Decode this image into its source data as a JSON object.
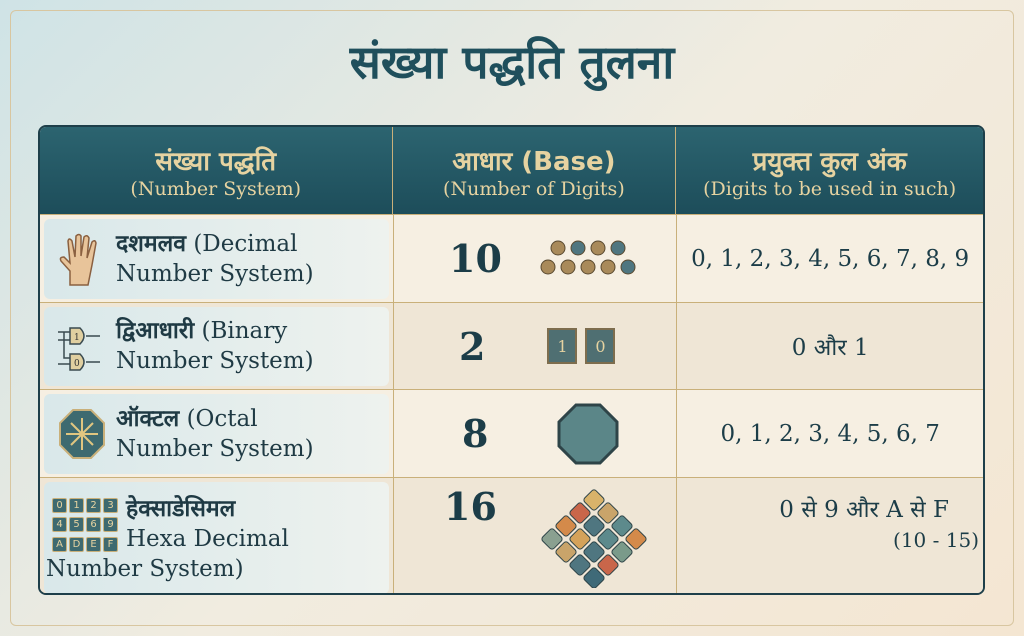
{
  "title": "संख्या पद्धति तुलना",
  "header": {
    "col1": {
      "hi": "संख्या पद्धति",
      "en": "(Number System)"
    },
    "col2": {
      "hi": "आधार (Base)",
      "en": "(Number of Digits)"
    },
    "col3": {
      "hi": "प्रयुक्त कुल अंक",
      "en": "(Digits to be used in such)"
    }
  },
  "rows": [
    {
      "hi": "दशमलव",
      "en1": "(Decimal",
      "en2": "Number System)",
      "base": "10",
      "digits": "0, 1, 2, 3, 4, 5, 6, 7, 8, 9",
      "icon": "hand-icon",
      "visual": "beads-icon"
    },
    {
      "hi": "द्विआधारी",
      "en1": "(Binary",
      "en2": "Number System)",
      "base": "2",
      "digits": "0 और 1",
      "icon": "logic-gate-icon",
      "visual": "chips-icon",
      "chip_labels": [
        "1",
        "0"
      ]
    },
    {
      "hi": "ऑक्टल",
      "en1": "(Octal",
      "en2": "Number System)",
      "base": "8",
      "digits": "0, 1, 2, 3, 4, 5, 6, 7",
      "icon": "octagon-star-icon",
      "visual": "octagon-icon"
    },
    {
      "hi": "हेक्साडेसिमल",
      "en1": "Hexa Decimal",
      "en2": "Number System)",
      "base": "16",
      "digits": "0 से 9 और A से F",
      "digits_note": "(10 - 15)",
      "icon": "hex-keypad-icon",
      "visual": "tile-diamond-icon",
      "keypad": [
        "0",
        "1",
        "2",
        "3",
        "4",
        "5",
        "6",
        "9",
        "A",
        "D",
        "E",
        "F"
      ]
    }
  ],
  "colors": {
    "title": "#1f4f5c",
    "header_bg": "#1d4d5a",
    "header_text": "#e6d3a1",
    "border": "#c9b07a"
  }
}
